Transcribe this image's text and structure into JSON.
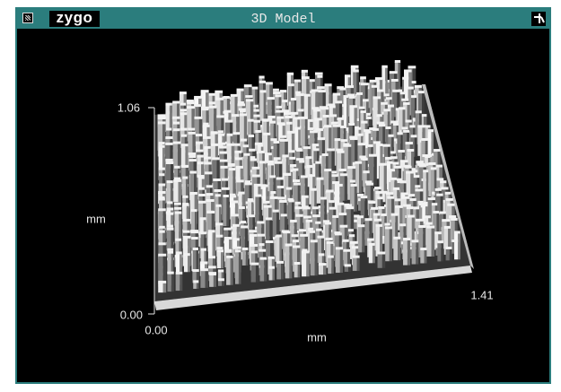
{
  "window": {
    "logo": "zygo",
    "title": "3D Model"
  },
  "plot": {
    "y_axis": {
      "max": "1.06",
      "min": "0.00",
      "label": "mm"
    },
    "x_axis": {
      "min": "0.00",
      "max": "1.41",
      "label": "mm"
    }
  }
}
